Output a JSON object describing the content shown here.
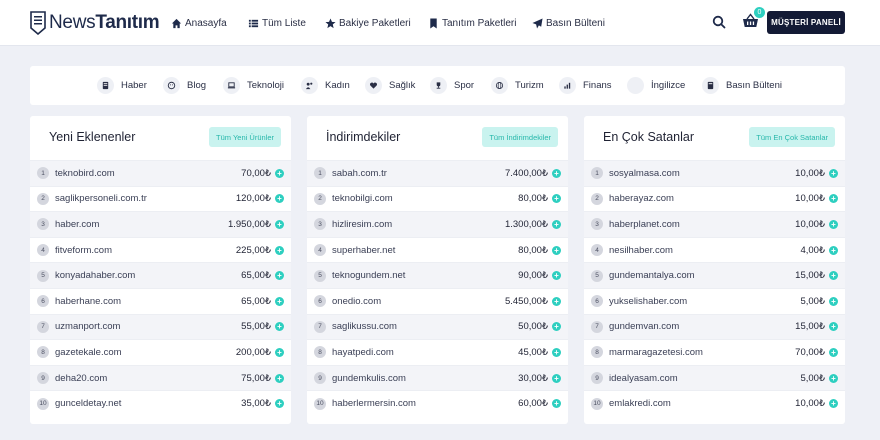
{
  "brand": {
    "part1": "News",
    "part2": "Tanıtım"
  },
  "nav": [
    {
      "label": "Anasayfa",
      "icon": "home-icon"
    },
    {
      "label": "Tüm Liste",
      "icon": "list-icon"
    },
    {
      "label": "Bakiye Paketleri",
      "icon": "star-icon"
    },
    {
      "label": "Tanıtım Paketleri",
      "icon": "bookmark-icon"
    },
    {
      "label": "Basın Bülteni",
      "icon": "send-icon"
    }
  ],
  "cart": {
    "count": "0"
  },
  "client_button": "MÜŞTERİ PANELİ",
  "categories": [
    {
      "label": "Haber",
      "icon": "newspaper-icon"
    },
    {
      "label": "Blog",
      "icon": "blog-icon"
    },
    {
      "label": "Teknoloji",
      "icon": "laptop-icon"
    },
    {
      "label": "Kadın",
      "icon": "woman-icon"
    },
    {
      "label": "Sağlık",
      "icon": "heart-icon"
    },
    {
      "label": "Spor",
      "icon": "trophy-icon"
    },
    {
      "label": "Turizm",
      "icon": "globe-icon"
    },
    {
      "label": "Finans",
      "icon": "chart-icon"
    },
    {
      "label": "İngilizce",
      "icon": "english-icon"
    },
    {
      "label": "Basın Bülteni",
      "icon": "press-icon"
    }
  ],
  "panels": [
    {
      "title": "Yeni Eklenenler",
      "button": "Tüm Yeni Ürünler",
      "rows": [
        {
          "n": "1",
          "site": "teknobird.com",
          "price": "70,00₺"
        },
        {
          "n": "2",
          "site": "saglikpersoneli.com.tr",
          "price": "120,00₺"
        },
        {
          "n": "3",
          "site": "haber.com",
          "price": "1.950,00₺"
        },
        {
          "n": "4",
          "site": "fitveform.com",
          "price": "225,00₺"
        },
        {
          "n": "5",
          "site": "konyadahaber.com",
          "price": "65,00₺"
        },
        {
          "n": "6",
          "site": "haberhane.com",
          "price": "65,00₺"
        },
        {
          "n": "7",
          "site": "uzmanport.com",
          "price": "55,00₺"
        },
        {
          "n": "8",
          "site": "gazetekale.com",
          "price": "200,00₺"
        },
        {
          "n": "9",
          "site": "deha20.com",
          "price": "75,00₺"
        },
        {
          "n": "10",
          "site": "gunceldetay.net",
          "price": "35,00₺"
        }
      ]
    },
    {
      "title": "İndirimdekiler",
      "button": "Tüm İndirimdekiler",
      "rows": [
        {
          "n": "1",
          "site": "sabah.com.tr",
          "price": "7.400,00₺"
        },
        {
          "n": "2",
          "site": "teknobilgi.com",
          "price": "80,00₺"
        },
        {
          "n": "3",
          "site": "hizliresim.com",
          "price": "1.300,00₺"
        },
        {
          "n": "4",
          "site": "superhaber.net",
          "price": "80,00₺"
        },
        {
          "n": "5",
          "site": "teknogundem.net",
          "price": "90,00₺"
        },
        {
          "n": "6",
          "site": "onedio.com",
          "price": "5.450,00₺"
        },
        {
          "n": "7",
          "site": "saglikussu.com",
          "price": "50,00₺"
        },
        {
          "n": "8",
          "site": "hayatpedi.com",
          "price": "45,00₺"
        },
        {
          "n": "9",
          "site": "gundemkulis.com",
          "price": "30,00₺"
        },
        {
          "n": "10",
          "site": "haberlermersin.com",
          "price": "60,00₺"
        }
      ]
    },
    {
      "title": "En Çok Satanlar",
      "button": "Tüm En Çok Satanlar",
      "rows": [
        {
          "n": "1",
          "site": "sosyalmasa.com",
          "price": "10,00₺"
        },
        {
          "n": "2",
          "site": "haberayaz.com",
          "price": "10,00₺"
        },
        {
          "n": "3",
          "site": "haberplanet.com",
          "price": "10,00₺"
        },
        {
          "n": "4",
          "site": "nesilhaber.com",
          "price": "4,00₺"
        },
        {
          "n": "5",
          "site": "gundemantalya.com",
          "price": "15,00₺"
        },
        {
          "n": "6",
          "site": "yukselishaber.com",
          "price": "5,00₺"
        },
        {
          "n": "7",
          "site": "gundemvan.com",
          "price": "15,00₺"
        },
        {
          "n": "8",
          "site": "marmaragazetesi.com",
          "price": "70,00₺"
        },
        {
          "n": "9",
          "site": "idealyasam.com",
          "price": "5,00₺"
        },
        {
          "n": "10",
          "site": "emlakredi.com",
          "price": "10,00₺"
        }
      ]
    }
  ]
}
